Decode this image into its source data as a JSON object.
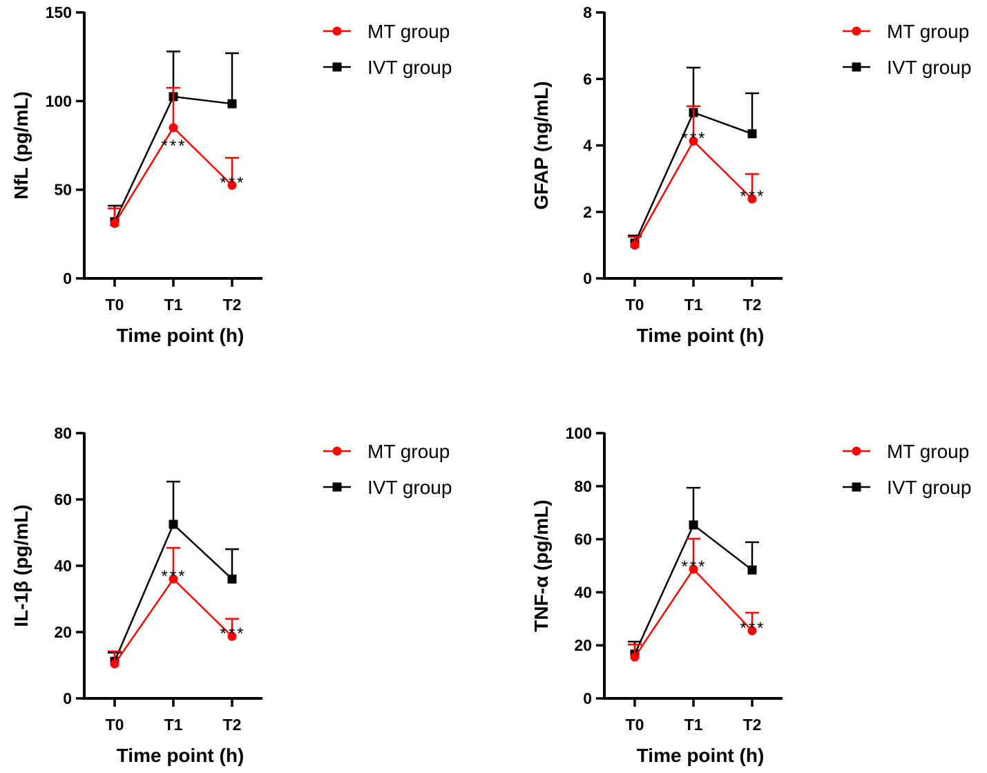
{
  "chart_data": [
    {
      "type": "line",
      "ylabel": "NfL (pg/mL)",
      "xlabel": "Time point (h)",
      "categories": [
        "T0",
        "T1",
        "T2"
      ],
      "ylim": [
        0,
        150
      ],
      "yticks": [
        0,
        50,
        100,
        150
      ],
      "legend_position": "top-right",
      "series": [
        {
          "name": "MT group",
          "color": "#ff0000",
          "marker": "circle",
          "values": [
            31,
            85,
            52.5
          ],
          "error_upper": [
            39.5,
            107.5,
            68
          ]
        },
        {
          "name": "IVT group",
          "color": "#000000",
          "marker": "square",
          "values": [
            32,
            102.5,
            98.5
          ],
          "error_upper": [
            41,
            128,
            127
          ]
        }
      ],
      "annotations": [
        {
          "category": "T1",
          "text": "***",
          "position": "below"
        },
        {
          "category": "T2",
          "text": "***",
          "position": "above"
        }
      ]
    },
    {
      "type": "line",
      "ylabel": "GFAP (ng/mL)",
      "xlabel": "Time point (h)",
      "categories": [
        "T0",
        "T1",
        "T2"
      ],
      "ylim": [
        0,
        8
      ],
      "yticks": [
        0,
        2,
        4,
        6,
        8
      ],
      "legend_position": "top-right",
      "series": [
        {
          "name": "MT group",
          "color": "#ff0000",
          "marker": "circle",
          "values": [
            1.0,
            4.13,
            2.39
          ],
          "error_upper": [
            1.25,
            5.18,
            3.14
          ]
        },
        {
          "name": "IVT group",
          "color": "#000000",
          "marker": "square",
          "values": [
            1.06,
            4.99,
            4.35
          ],
          "error_upper": [
            1.29,
            6.34,
            5.57
          ]
        }
      ],
      "annotations": [
        {
          "category": "T1",
          "text": "***",
          "position": "above"
        },
        {
          "category": "T2",
          "text": "***",
          "position": "above"
        }
      ]
    },
    {
      "type": "line",
      "ylabel": "IL-1β (pg/mL)",
      "xlabel": "Time point (h)",
      "categories": [
        "T0",
        "T1",
        "T2"
      ],
      "ylim": [
        0,
        80
      ],
      "yticks": [
        0,
        20,
        40,
        60,
        80
      ],
      "legend_position": "top-right",
      "series": [
        {
          "name": "MT group",
          "color": "#ff0000",
          "marker": "circle",
          "values": [
            10.4,
            36,
            18.7
          ],
          "error_upper": [
            14.2,
            45.4,
            24
          ]
        },
        {
          "name": "IVT group",
          "color": "#000000",
          "marker": "square",
          "values": [
            11.2,
            52.5,
            36
          ],
          "error_upper": [
            13.8,
            65.4,
            45
          ]
        }
      ],
      "annotations": [
        {
          "category": "T1",
          "text": "***",
          "position": "above"
        },
        {
          "category": "T2",
          "text": "***",
          "position": "above"
        }
      ]
    },
    {
      "type": "line",
      "ylabel": "TNF-α (pg/mL)",
      "xlabel": "Time point (h)",
      "categories": [
        "T0",
        "T1",
        "T2"
      ],
      "ylim": [
        0,
        100
      ],
      "yticks": [
        0,
        20,
        40,
        60,
        80,
        100
      ],
      "legend_position": "top-right",
      "series": [
        {
          "name": "MT group",
          "color": "#ff0000",
          "marker": "circle",
          "values": [
            15.6,
            48.7,
            25.5
          ],
          "error_upper": [
            20.3,
            60.2,
            32.3
          ]
        },
        {
          "name": "IVT group",
          "color": "#000000",
          "marker": "square",
          "values": [
            16.7,
            65.4,
            48.4
          ],
          "error_upper": [
            21.4,
            79.4,
            58.9
          ]
        }
      ],
      "annotations": [
        {
          "category": "T1",
          "text": "***",
          "position": "above"
        },
        {
          "category": "T2",
          "text": "***",
          "position": "above"
        }
      ]
    }
  ]
}
